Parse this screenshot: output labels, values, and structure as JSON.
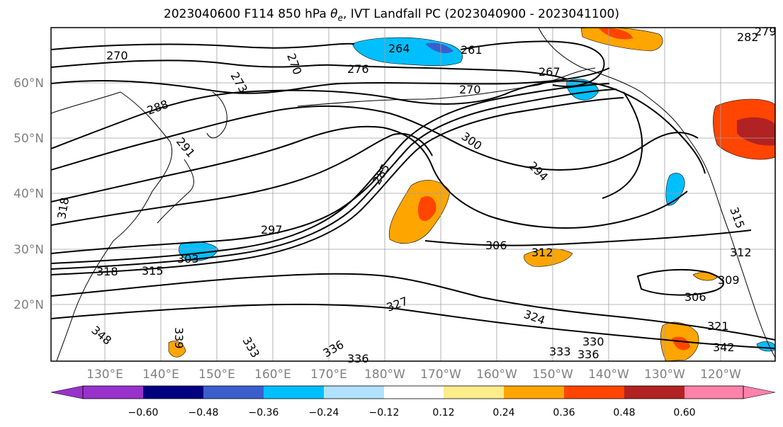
{
  "title": {
    "prefix": "2023040600 F114 850 hPa ",
    "theta": "θ",
    "theta_sub": "e",
    "suffix": ", IVT Landfall PC (2023040900 - 2023041100)"
  },
  "map": {
    "lat_labels": [
      "60°N",
      "50°N",
      "40°N",
      "30°N",
      "20°N"
    ],
    "lon_labels": [
      "130°E",
      "140°E",
      "150°E",
      "160°E",
      "170°E",
      "180°W",
      "170°W",
      "160°W",
      "150°W",
      "140°W",
      "130°W",
      "120°W"
    ],
    "contour_labels": [
      "270",
      "273",
      "270",
      "276",
      "264",
      "261",
      "267",
      "270",
      "279",
      "282",
      "288",
      "291",
      "300",
      "294",
      "285",
      "297",
      "306",
      "303",
      "312",
      "315",
      "318",
      "309",
      "306",
      "327",
      "324",
      "330",
      "333",
      "336",
      "336",
      "321",
      "342",
      "348",
      "339",
      "333",
      "336",
      "312",
      "315",
      "318"
    ],
    "colors": {
      "neg_060": "#9932cc",
      "neg_048": "#000080",
      "neg_036": "#3a5fcd",
      "neg_024": "#00bfff",
      "neg_012": "#b0e2ff",
      "zero": "#ffffff",
      "pos_012": "#ffec8b",
      "pos_024": "#ffa500",
      "pos_036": "#ff4500",
      "pos_048": "#b22222",
      "pos_060": "#ff82ab"
    }
  },
  "colorbar": {
    "ticks": [
      "−0.60",
      "−0.48",
      "−0.36",
      "−0.24",
      "−0.12",
      "0.12",
      "0.24",
      "0.36",
      "0.48",
      "0.60"
    ]
  }
}
